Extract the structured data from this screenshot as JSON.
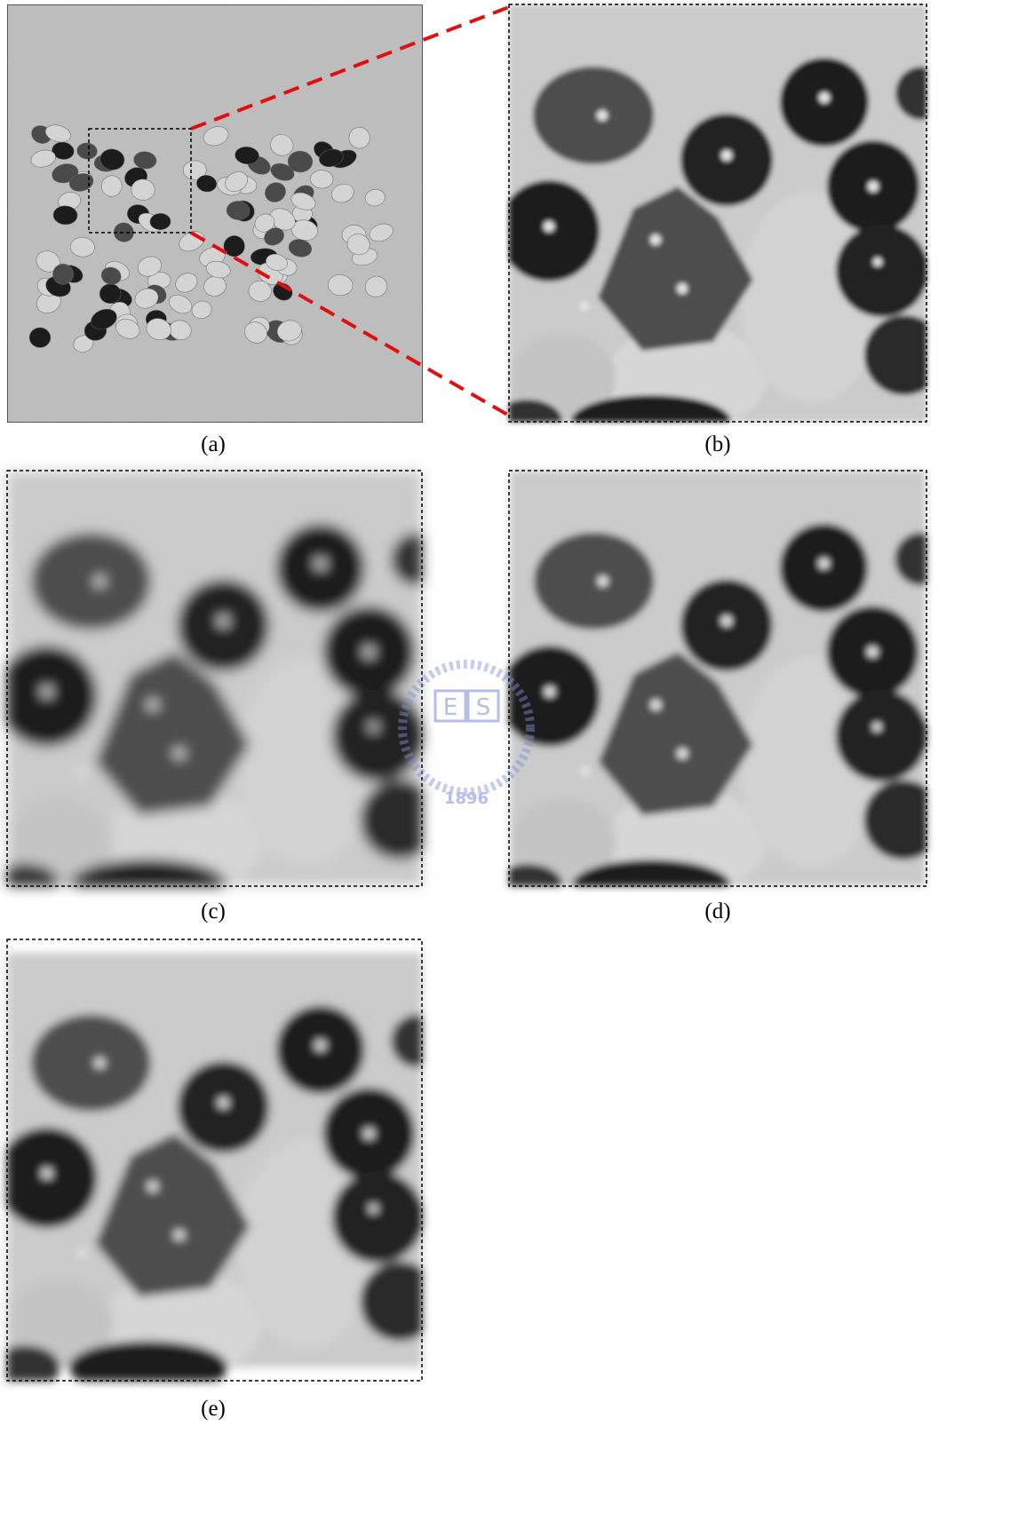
{
  "panels": [
    {
      "label": "(a)"
    },
    {
      "label": "(b)"
    },
    {
      "label": "(c)"
    },
    {
      "label": "(d)"
    },
    {
      "label": "(e)"
    }
  ],
  "watermark": {
    "letters": [
      "E",
      "S"
    ],
    "year": "1896"
  }
}
